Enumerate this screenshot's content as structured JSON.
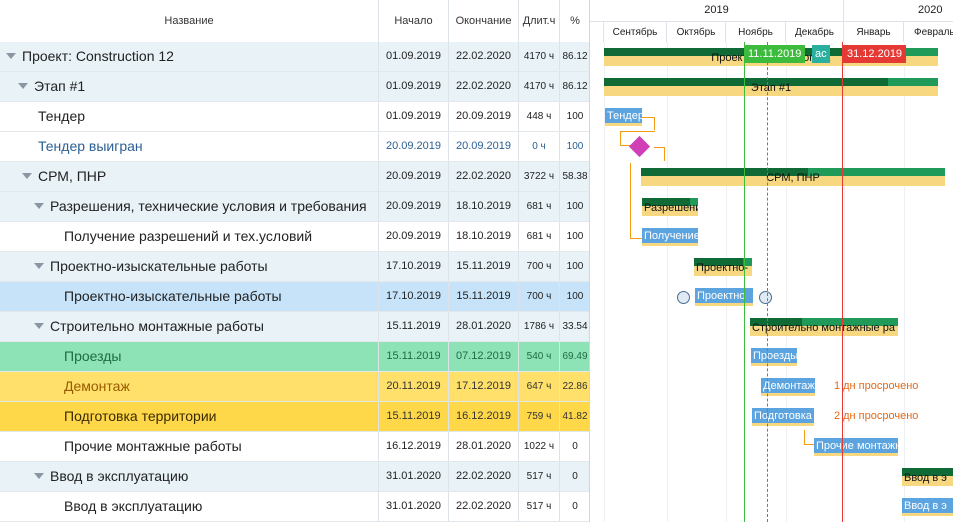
{
  "columns": {
    "name": "Название",
    "start": "Начало",
    "end": "Окончание",
    "duration": "Длит.ч",
    "percent": "%"
  },
  "timeline": {
    "years": [
      {
        "label": "2019"
      },
      {
        "label": "2020"
      }
    ],
    "months": [
      "Сентябрь",
      "Октябрь",
      "Ноябрь",
      "Декабрь",
      "Январь",
      "Февраль"
    ],
    "today_flag": "11.11.2019",
    "today_suffix": "ас",
    "deadline_flag": "31.12.2019"
  },
  "rows": [
    {
      "name": "Проект: Construction 12",
      "start": "01.09.2019",
      "end": "22.02.2020",
      "duration": "4170 ч",
      "percent": "86.12",
      "level": 0,
      "expand": true,
      "bg": "#e8f2f7",
      "color": "#222"
    },
    {
      "name": "Этап #1",
      "start": "01.09.2019",
      "end": "22.02.2020",
      "duration": "4170 ч",
      "percent": "86.12",
      "level": 1,
      "expand": true,
      "bg": "#e8f2f7",
      "color": "#222"
    },
    {
      "name": "Тендер",
      "start": "01.09.2019",
      "end": "20.09.2019",
      "duration": "448 ч",
      "percent": "100",
      "level": 2,
      "expand": false,
      "bg": "#ffffff",
      "color": "#222"
    },
    {
      "name": "Тендер выигран",
      "start": "20.09.2019",
      "end": "20.09.2019",
      "duration": "0 ч",
      "percent": "100",
      "level": 2,
      "expand": false,
      "bg": "#ffffff",
      "color": "#2b5f93"
    },
    {
      "name": "СРМ, ПНР",
      "start": "20.09.2019",
      "end": "22.02.2020",
      "duration": "3722 ч",
      "percent": "58.38",
      "level": 2,
      "expand": true,
      "bg": "#e8f2f7",
      "color": "#222"
    },
    {
      "name": "Разрешения, технические условия и требования",
      "start": "20.09.2019",
      "end": "18.10.2019",
      "duration": "681 ч",
      "percent": "100",
      "level": 3,
      "expand": true,
      "bg": "#e8f2f7",
      "color": "#222"
    },
    {
      "name": "Получение разрешений и тех.условий",
      "start": "20.09.2019",
      "end": "18.10.2019",
      "duration": "681 ч",
      "percent": "100",
      "level": 4,
      "expand": false,
      "bg": "#ffffff",
      "color": "#222"
    },
    {
      "name": "Проектно-изыскательные работы",
      "start": "17.10.2019",
      "end": "15.11.2019",
      "duration": "700 ч",
      "percent": "100",
      "level": 3,
      "expand": true,
      "bg": "#e8f2f7",
      "color": "#222"
    },
    {
      "name": "Проектно-изыскательные работы",
      "start": "17.10.2019",
      "end": "15.11.2019",
      "duration": "700 ч",
      "percent": "100",
      "level": 4,
      "expand": false,
      "bg": "#c6e3fa",
      "color": "#222"
    },
    {
      "name": "Строительно монтажные работы",
      "start": "15.11.2019",
      "end": "28.01.2020",
      "duration": "1786 ч",
      "percent": "33.54",
      "level": 3,
      "expand": true,
      "bg": "#e8f2f7",
      "color": "#222"
    },
    {
      "name": "Проезды",
      "start": "15.11.2019",
      "end": "07.12.2019",
      "duration": "540 ч",
      "percent": "69.49",
      "level": 4,
      "expand": false,
      "bg": "#8de3b6",
      "color": "#1f6b44"
    },
    {
      "name": "Демонтаж",
      "start": "20.11.2019",
      "end": "17.12.2019",
      "duration": "647 ч",
      "percent": "22.86",
      "level": 4,
      "expand": false,
      "bg": "#ffe06a",
      "color": "#9a5a00"
    },
    {
      "name": "Подготовка территории",
      "start": "15.11.2019",
      "end": "16.12.2019",
      "duration": "759 ч",
      "percent": "41.82",
      "level": 4,
      "expand": false,
      "bg": "#ffd84a",
      "color": "#3a2a00"
    },
    {
      "name": "Прочие монтажные работы",
      "start": "16.12.2019",
      "end": "28.01.2020",
      "duration": "1022 ч",
      "percent": "0",
      "level": 4,
      "expand": false,
      "bg": "#ffffff",
      "color": "#222"
    },
    {
      "name": "Ввод в эксплуатацию",
      "start": "31.01.2020",
      "end": "22.02.2020",
      "duration": "517 ч",
      "percent": "0",
      "level": 3,
      "expand": true,
      "bg": "#e8f2f7",
      "color": "#222"
    },
    {
      "name": "Ввод в эксплуатацию",
      "start": "31.01.2020",
      "end": "22.02.2020",
      "duration": "517 ч",
      "percent": "0",
      "level": 4,
      "expand": false,
      "bg": "#ffffff",
      "color": "#222"
    }
  ],
  "bars": [
    {
      "row": 0,
      "type": "summary",
      "label": "Проект: Construction 12"
    },
    {
      "row": 1,
      "type": "summary",
      "label": "Этап #1"
    },
    {
      "row": 2,
      "type": "task",
      "label": "Тендер"
    },
    {
      "row": 3,
      "type": "milestone",
      "label": ""
    },
    {
      "row": 4,
      "type": "summary",
      "label": "СРМ, ПНР"
    },
    {
      "row": 5,
      "type": "summary",
      "label": "Разрешения"
    },
    {
      "row": 6,
      "type": "task",
      "label": "Получение"
    },
    {
      "row": 7,
      "type": "summary",
      "label": "Проектно-"
    },
    {
      "row": 8,
      "type": "task",
      "label": "Проектно"
    },
    {
      "row": 9,
      "type": "summary",
      "label": "Строительно монтажные ра"
    },
    {
      "row": 10,
      "type": "task",
      "label": "Проезды"
    },
    {
      "row": 11,
      "type": "task",
      "label": "Демонтаж"
    },
    {
      "row": 12,
      "type": "task",
      "label": "Подготовка"
    },
    {
      "row": 13,
      "type": "task",
      "label": "Прочие монтажные"
    },
    {
      "row": 14,
      "type": "summary",
      "label": "Ввод в э"
    },
    {
      "row": 15,
      "type": "task",
      "label": "Ввод в э"
    }
  ],
  "overdue": [
    {
      "row": 11,
      "num": "1",
      "text": "дн просрочено"
    },
    {
      "row": 12,
      "num": "2",
      "text": "дн просрочено"
    }
  ],
  "colors": {
    "summary_top": "#1f9a58",
    "summary_dark": "#0f6a35",
    "baseline": "#f7d77f",
    "task": "#5ba4df",
    "milestone": "#d13fb7",
    "today": "#3dbb3d",
    "deadline": "#e53935",
    "overdue": "#e36a17"
  }
}
